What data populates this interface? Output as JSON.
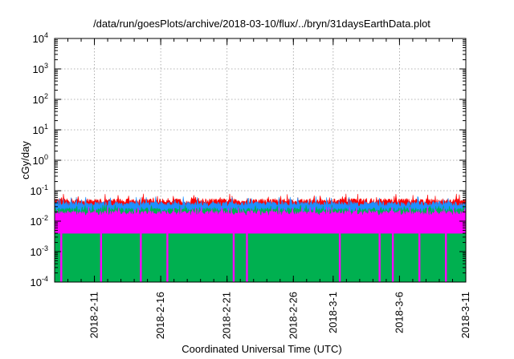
{
  "chart_data": {
    "type": "area",
    "title": "/data/run/goesPlots/archive/2018-03-10/flux/../bryn/31daysEarthData.plot",
    "xlabel": "Coordinated Universal Time (UTC)",
    "ylabel": "cGy/day",
    "yscale": "log",
    "ylim": [
      0.0001,
      10000
    ],
    "y_ticks": [
      {
        "base": "10",
        "exp": "-4",
        "value": 0.0001
      },
      {
        "base": "10",
        "exp": "-3",
        "value": 0.001
      },
      {
        "base": "10",
        "exp": "-2",
        "value": 0.01
      },
      {
        "base": "10",
        "exp": "-1",
        "value": 0.1
      },
      {
        "base": "10",
        "exp": "0",
        "value": 1
      },
      {
        "base": "10",
        "exp": "1",
        "value": 10
      },
      {
        "base": "10",
        "exp": "2",
        "value": 100
      },
      {
        "base": "10",
        "exp": "3",
        "value": 1000
      },
      {
        "base": "10",
        "exp": "4",
        "value": 10000
      }
    ],
    "xlim": [
      "2018-02-08",
      "2018-03-11"
    ],
    "x_ticks": [
      "2018-2-11",
      "2018-2-16",
      "2018-2-21",
      "2018-2-26",
      "2018-3-1",
      "2018-3-6",
      "2018-3-11"
    ],
    "x_tick_dates": [
      "2018-02-11",
      "2018-02-16",
      "2018-02-21",
      "2018-02-26",
      "2018-03-01",
      "2018-03-06",
      "2018-03-11"
    ],
    "grid": true,
    "series": [
      {
        "color": "#ff0000",
        "typical_value": 0.05,
        "max_value": 0.08
      },
      {
        "color": "#1e90ff",
        "typical_value": 0.04,
        "max_value": 0.065
      },
      {
        "color": "#00b050",
        "typical_value": 0.025,
        "max_value": 0.035
      },
      {
        "color": "#ff00ff",
        "typical_value": 0.02,
        "max_value": 0.03,
        "min_value": 0.004
      }
    ],
    "dropouts": [
      "2018-02-08",
      "2018-02-11",
      "2018-02-14",
      "2018-02-16",
      "2018-02-21",
      "2018-02-22",
      "2018-03-01",
      "2018-03-04",
      "2018-03-05",
      "2018-03-07",
      "2018-03-09"
    ]
  }
}
